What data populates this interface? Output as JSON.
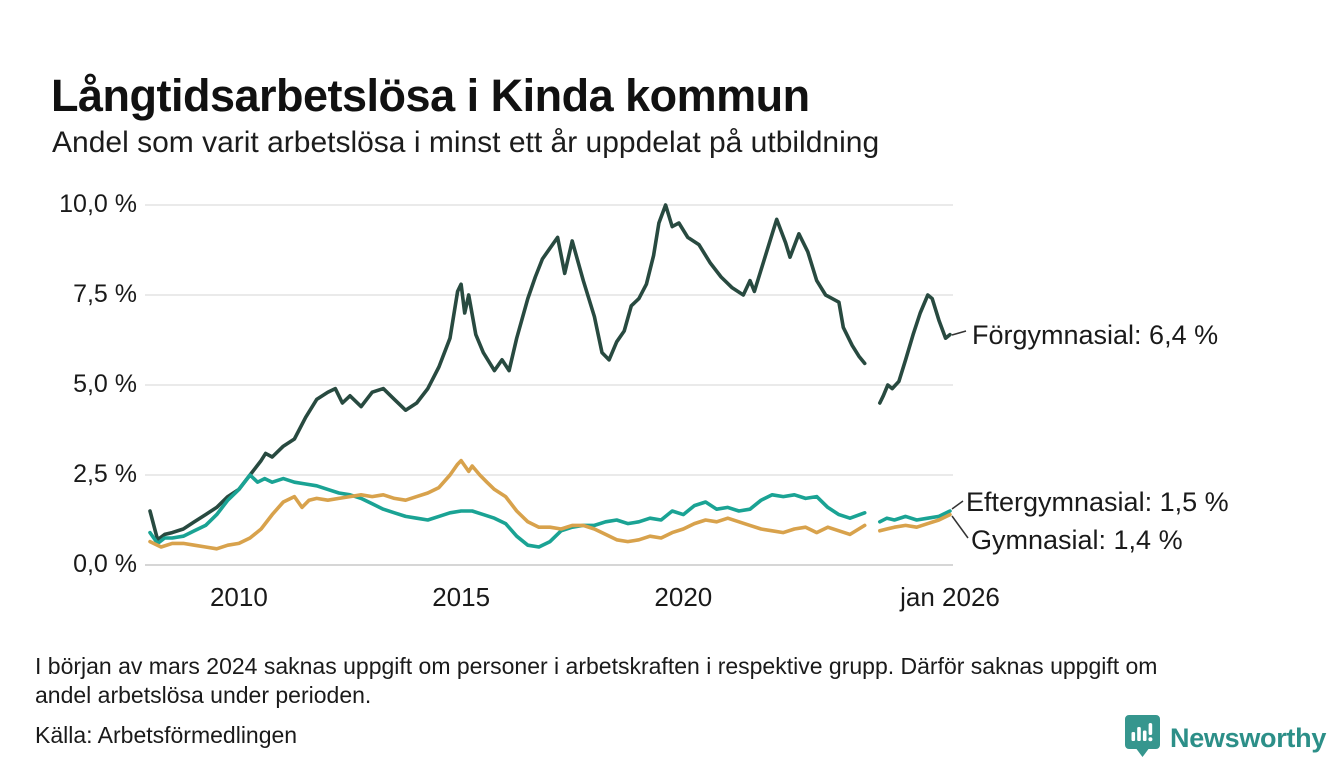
{
  "notes": {
    "footnote_line1": "I början av mars 2024 saknas uppgift om personer i arbetskraften i respektive grupp. Därför saknas uppgift om",
    "footnote_line2": "andel arbetslösa under perioden.",
    "source": "Källa: Arbetsförmedlingen"
  },
  "branding": {
    "name": "Newsworthy",
    "icon": "bar-chart-pin-icon",
    "icon_color": "#36968E",
    "text_color": "#2C8F88"
  },
  "chart_data": {
    "type": "line",
    "title": "Långtidsarbetslösa i Kinda kommun",
    "subtitle": "Andel som varit arbetslösa i minst ett år uppdelat på utbildning",
    "xlabel": "",
    "ylabel": "",
    "ylim": [
      0,
      10
    ],
    "xlim": [
      2008,
      2026.08
    ],
    "grid": true,
    "legend_position": "direct-labels-right",
    "missing_data_gap": [
      2024.1,
      2024.42
    ],
    "y_axis": {
      "ticks": [
        {
          "v": 10,
          "label": "10,0 %"
        },
        {
          "v": 7.5,
          "label": "7,5 %"
        },
        {
          "v": 5,
          "label": "5,0 %"
        },
        {
          "v": 2.5,
          "label": "2,5 %"
        },
        {
          "v": 0,
          "label": "0,0 %"
        }
      ]
    },
    "x_axis": {
      "ticks": [
        {
          "t": 2010,
          "label": "2010"
        },
        {
          "t": 2015,
          "label": "2015"
        },
        {
          "t": 2020,
          "label": "2020"
        },
        {
          "t": 2026,
          "label": "jan 2026"
        }
      ]
    },
    "annotations": [
      {
        "series": "Förgymnasial",
        "text": "Förgymnasial: 6,4 %",
        "value": "6,4 %"
      },
      {
        "series": "Eftergymnasial",
        "text": "Eftergymnasial: 1,5 %",
        "value": "1,5 %"
      },
      {
        "series": "Gymnasial",
        "text": "Gymnasial: 1,4 %",
        "value": "1,4 %"
      }
    ],
    "series": [
      {
        "name": "Förgymnasial",
        "color": "#284A40",
        "end_value": 6.4,
        "points": [
          [
            2008.0,
            1.5
          ],
          [
            2008.17,
            0.7
          ],
          [
            2008.33,
            0.85
          ],
          [
            2008.5,
            0.9
          ],
          [
            2008.75,
            1.0
          ],
          [
            2009.0,
            1.2
          ],
          [
            2009.25,
            1.4
          ],
          [
            2009.5,
            1.6
          ],
          [
            2009.75,
            1.9
          ],
          [
            2010.0,
            2.1
          ],
          [
            2010.25,
            2.5
          ],
          [
            2010.5,
            2.9
          ],
          [
            2010.6,
            3.1
          ],
          [
            2010.75,
            3.0
          ],
          [
            2011.0,
            3.3
          ],
          [
            2011.25,
            3.5
          ],
          [
            2011.5,
            4.1
          ],
          [
            2011.75,
            4.6
          ],
          [
            2012.0,
            4.8
          ],
          [
            2012.17,
            4.9
          ],
          [
            2012.33,
            4.5
          ],
          [
            2012.5,
            4.7
          ],
          [
            2012.75,
            4.4
          ],
          [
            2013.0,
            4.8
          ],
          [
            2013.25,
            4.9
          ],
          [
            2013.5,
            4.6
          ],
          [
            2013.75,
            4.3
          ],
          [
            2014.0,
            4.5
          ],
          [
            2014.25,
            4.9
          ],
          [
            2014.5,
            5.5
          ],
          [
            2014.75,
            6.3
          ],
          [
            2014.92,
            7.6
          ],
          [
            2015.0,
            7.8
          ],
          [
            2015.08,
            7.0
          ],
          [
            2015.17,
            7.5
          ],
          [
            2015.33,
            6.4
          ],
          [
            2015.5,
            5.9
          ],
          [
            2015.75,
            5.4
          ],
          [
            2015.92,
            5.7
          ],
          [
            2016.08,
            5.4
          ],
          [
            2016.25,
            6.3
          ],
          [
            2016.5,
            7.4
          ],
          [
            2016.67,
            8.0
          ],
          [
            2016.83,
            8.5
          ],
          [
            2017.0,
            8.8
          ],
          [
            2017.17,
            9.1
          ],
          [
            2017.33,
            8.1
          ],
          [
            2017.5,
            9.0
          ],
          [
            2017.75,
            7.9
          ],
          [
            2018.0,
            6.9
          ],
          [
            2018.17,
            5.9
          ],
          [
            2018.33,
            5.7
          ],
          [
            2018.5,
            6.2
          ],
          [
            2018.67,
            6.5
          ],
          [
            2018.83,
            7.2
          ],
          [
            2019.0,
            7.4
          ],
          [
            2019.17,
            7.8
          ],
          [
            2019.33,
            8.6
          ],
          [
            2019.45,
            9.5
          ],
          [
            2019.6,
            10.0
          ],
          [
            2019.75,
            9.4
          ],
          [
            2019.9,
            9.5
          ],
          [
            2020.1,
            9.1
          ],
          [
            2020.35,
            8.9
          ],
          [
            2020.6,
            8.4
          ],
          [
            2020.85,
            8.0
          ],
          [
            2021.1,
            7.7
          ],
          [
            2021.35,
            7.5
          ],
          [
            2021.5,
            7.9
          ],
          [
            2021.6,
            7.6
          ],
          [
            2021.8,
            8.4
          ],
          [
            2022.0,
            9.2
          ],
          [
            2022.1,
            9.6
          ],
          [
            2022.3,
            8.95
          ],
          [
            2022.4,
            8.55
          ],
          [
            2022.6,
            9.2
          ],
          [
            2022.8,
            8.7
          ],
          [
            2023.0,
            7.9
          ],
          [
            2023.2,
            7.5
          ],
          [
            2023.35,
            7.4
          ],
          [
            2023.5,
            7.3
          ],
          [
            2023.6,
            6.6
          ],
          [
            2023.8,
            6.1
          ],
          [
            2023.95,
            5.8
          ],
          [
            2024.08,
            5.6
          ],
          [
            2024.2,
            null
          ],
          [
            2024.42,
            4.5
          ],
          [
            2024.5,
            4.7
          ],
          [
            2024.6,
            5.0
          ],
          [
            2024.7,
            4.9
          ],
          [
            2024.85,
            5.1
          ],
          [
            2025.0,
            5.7
          ],
          [
            2025.17,
            6.4
          ],
          [
            2025.33,
            7.0
          ],
          [
            2025.5,
            7.5
          ],
          [
            2025.6,
            7.4
          ],
          [
            2025.75,
            6.8
          ],
          [
            2025.9,
            6.3
          ],
          [
            2026.0,
            6.4
          ]
        ]
      },
      {
        "name": "Eftergymnasial",
        "color": "#1AA394",
        "end_value": 1.5,
        "points": [
          [
            2008.0,
            0.9
          ],
          [
            2008.17,
            0.6
          ],
          [
            2008.33,
            0.75
          ],
          [
            2008.5,
            0.75
          ],
          [
            2008.75,
            0.8
          ],
          [
            2009.0,
            0.95
          ],
          [
            2009.25,
            1.1
          ],
          [
            2009.5,
            1.4
          ],
          [
            2009.75,
            1.8
          ],
          [
            2010.0,
            2.1
          ],
          [
            2010.25,
            2.5
          ],
          [
            2010.42,
            2.3
          ],
          [
            2010.58,
            2.4
          ],
          [
            2010.75,
            2.3
          ],
          [
            2011.0,
            2.4
          ],
          [
            2011.25,
            2.3
          ],
          [
            2011.5,
            2.25
          ],
          [
            2011.75,
            2.2
          ],
          [
            2012.0,
            2.1
          ],
          [
            2012.25,
            2.0
          ],
          [
            2012.5,
            1.95
          ],
          [
            2012.75,
            1.85
          ],
          [
            2013.0,
            1.7
          ],
          [
            2013.25,
            1.55
          ],
          [
            2013.5,
            1.45
          ],
          [
            2013.75,
            1.35
          ],
          [
            2014.0,
            1.3
          ],
          [
            2014.25,
            1.25
          ],
          [
            2014.5,
            1.35
          ],
          [
            2014.75,
            1.45
          ],
          [
            2015.0,
            1.5
          ],
          [
            2015.25,
            1.5
          ],
          [
            2015.5,
            1.4
          ],
          [
            2015.75,
            1.3
          ],
          [
            2016.0,
            1.15
          ],
          [
            2016.25,
            0.8
          ],
          [
            2016.5,
            0.55
          ],
          [
            2016.75,
            0.5
          ],
          [
            2017.0,
            0.65
          ],
          [
            2017.25,
            0.95
          ],
          [
            2017.5,
            1.05
          ],
          [
            2017.75,
            1.1
          ],
          [
            2018.0,
            1.1
          ],
          [
            2018.25,
            1.2
          ],
          [
            2018.5,
            1.25
          ],
          [
            2018.75,
            1.15
          ],
          [
            2019.0,
            1.2
          ],
          [
            2019.25,
            1.3
          ],
          [
            2019.5,
            1.25
          ],
          [
            2019.75,
            1.5
          ],
          [
            2020.0,
            1.4
          ],
          [
            2020.25,
            1.65
          ],
          [
            2020.5,
            1.75
          ],
          [
            2020.75,
            1.55
          ],
          [
            2021.0,
            1.6
          ],
          [
            2021.25,
            1.5
          ],
          [
            2021.5,
            1.55
          ],
          [
            2021.75,
            1.8
          ],
          [
            2022.0,
            1.95
          ],
          [
            2022.25,
            1.9
          ],
          [
            2022.5,
            1.95
          ],
          [
            2022.75,
            1.85
          ],
          [
            2023.0,
            1.9
          ],
          [
            2023.25,
            1.6
          ],
          [
            2023.5,
            1.4
          ],
          [
            2023.75,
            1.3
          ],
          [
            2024.08,
            1.45
          ],
          [
            2024.2,
            null
          ],
          [
            2024.42,
            1.2
          ],
          [
            2024.58,
            1.3
          ],
          [
            2024.75,
            1.25
          ],
          [
            2025.0,
            1.35
          ],
          [
            2025.25,
            1.25
          ],
          [
            2025.5,
            1.3
          ],
          [
            2025.75,
            1.35
          ],
          [
            2026.0,
            1.5
          ]
        ]
      },
      {
        "name": "Gymnasial",
        "color": "#D8A24C",
        "end_value": 1.4,
        "points": [
          [
            2008.0,
            0.65
          ],
          [
            2008.25,
            0.5
          ],
          [
            2008.5,
            0.6
          ],
          [
            2008.75,
            0.6
          ],
          [
            2009.0,
            0.55
          ],
          [
            2009.25,
            0.5
          ],
          [
            2009.5,
            0.45
          ],
          [
            2009.75,
            0.55
          ],
          [
            2010.0,
            0.6
          ],
          [
            2010.25,
            0.75
          ],
          [
            2010.5,
            1.0
          ],
          [
            2010.75,
            1.4
          ],
          [
            2011.0,
            1.75
          ],
          [
            2011.25,
            1.9
          ],
          [
            2011.42,
            1.6
          ],
          [
            2011.58,
            1.8
          ],
          [
            2011.75,
            1.85
          ],
          [
            2012.0,
            1.8
          ],
          [
            2012.25,
            1.85
          ],
          [
            2012.5,
            1.9
          ],
          [
            2012.75,
            1.95
          ],
          [
            2013.0,
            1.9
          ],
          [
            2013.25,
            1.95
          ],
          [
            2013.5,
            1.85
          ],
          [
            2013.75,
            1.8
          ],
          [
            2014.0,
            1.9
          ],
          [
            2014.25,
            2.0
          ],
          [
            2014.5,
            2.15
          ],
          [
            2014.75,
            2.5
          ],
          [
            2014.92,
            2.8
          ],
          [
            2015.0,
            2.9
          ],
          [
            2015.17,
            2.6
          ],
          [
            2015.25,
            2.75
          ],
          [
            2015.42,
            2.5
          ],
          [
            2015.58,
            2.3
          ],
          [
            2015.75,
            2.1
          ],
          [
            2016.0,
            1.9
          ],
          [
            2016.25,
            1.5
          ],
          [
            2016.5,
            1.2
          ],
          [
            2016.75,
            1.05
          ],
          [
            2017.0,
            1.05
          ],
          [
            2017.25,
            1.0
          ],
          [
            2017.5,
            1.1
          ],
          [
            2017.75,
            1.1
          ],
          [
            2018.0,
            1.0
          ],
          [
            2018.25,
            0.85
          ],
          [
            2018.5,
            0.7
          ],
          [
            2018.75,
            0.65
          ],
          [
            2019.0,
            0.7
          ],
          [
            2019.25,
            0.8
          ],
          [
            2019.5,
            0.75
          ],
          [
            2019.75,
            0.9
          ],
          [
            2020.0,
            1.0
          ],
          [
            2020.25,
            1.15
          ],
          [
            2020.5,
            1.25
          ],
          [
            2020.75,
            1.2
          ],
          [
            2021.0,
            1.3
          ],
          [
            2021.25,
            1.2
          ],
          [
            2021.5,
            1.1
          ],
          [
            2021.75,
            1.0
          ],
          [
            2022.0,
            0.95
          ],
          [
            2022.25,
            0.9
          ],
          [
            2022.5,
            1.0
          ],
          [
            2022.75,
            1.05
          ],
          [
            2023.0,
            0.9
          ],
          [
            2023.25,
            1.05
          ],
          [
            2023.5,
            0.95
          ],
          [
            2023.75,
            0.85
          ],
          [
            2024.08,
            1.1
          ],
          [
            2024.2,
            null
          ],
          [
            2024.42,
            0.95
          ],
          [
            2024.58,
            1.0
          ],
          [
            2024.75,
            1.05
          ],
          [
            2025.0,
            1.1
          ],
          [
            2025.25,
            1.05
          ],
          [
            2025.5,
            1.15
          ],
          [
            2025.75,
            1.25
          ],
          [
            2026.0,
            1.4
          ]
        ]
      }
    ]
  }
}
